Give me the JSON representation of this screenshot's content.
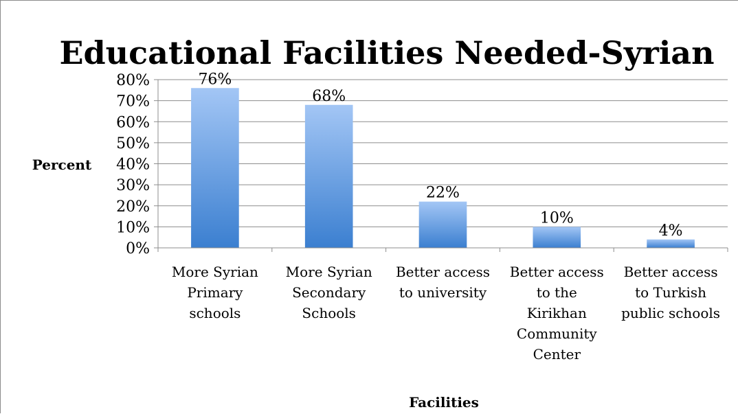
{
  "chart_data": {
    "type": "bar",
    "title": "Educational Facilities Needed-Syrian",
    "xlabel": "Facilities",
    "ylabel": "Percent",
    "ylim": [
      0,
      80
    ],
    "yticks": [
      "0%",
      "10%",
      "20%",
      "30%",
      "40%",
      "50%",
      "60%",
      "70%",
      "80%"
    ],
    "grid": true,
    "categories": [
      [
        "More Syrian",
        "Primary",
        "schools"
      ],
      [
        "More Syrian",
        "Secondary",
        "Schools"
      ],
      [
        "Better access",
        "to university"
      ],
      [
        "Better access",
        "to the",
        "Kirikhan",
        "Community",
        "Center"
      ],
      [
        "Better access",
        "to Turkish",
        "public schools"
      ]
    ],
    "values": [
      76,
      68,
      22,
      10,
      4
    ],
    "data_labels": [
      "76%",
      "68%",
      "22%",
      "10%",
      "4%"
    ],
    "bar_gradient": [
      "#a3c6f5",
      "#3b7fd0"
    ]
  }
}
